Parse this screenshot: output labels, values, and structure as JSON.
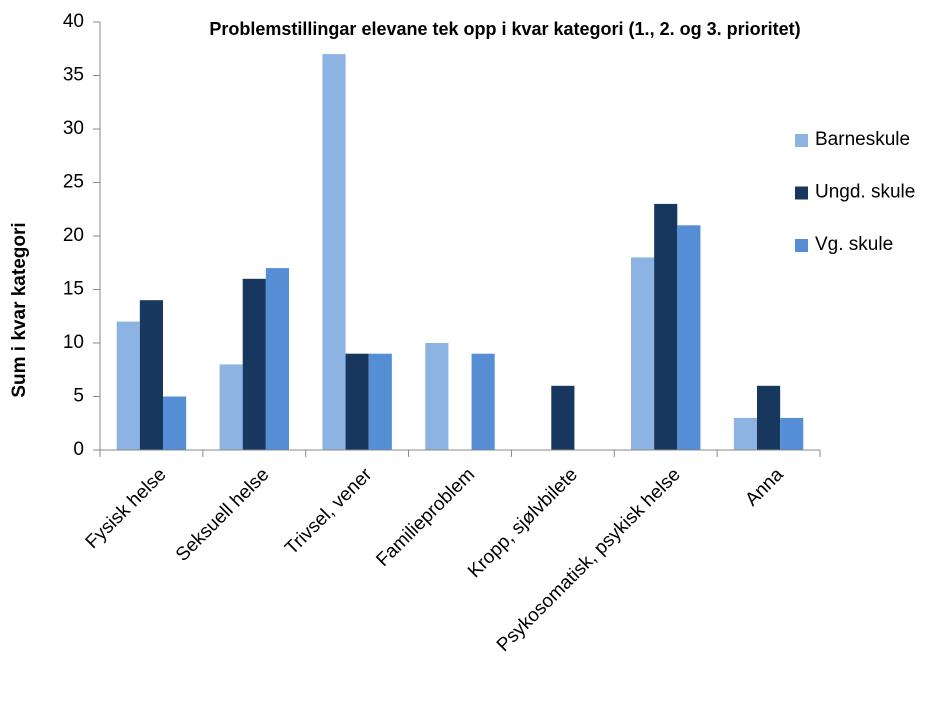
{
  "chart_data": {
    "type": "bar",
    "title": "Problemstillingar elevane tek opp i kvar kategori (1., 2. og 3. prioritet)",
    "y_label": "Sum i kvar kategori",
    "categories": [
      "Fysisk helse",
      "Seksuell helse",
      "Trivsel, vener",
      "Familieproblem",
      "Kropp, sjølvbilete",
      "Psykosomatisk, psykisk helse",
      "Anna"
    ],
    "series": [
      {
        "name": "Barneskule",
        "color": "#8db3e2",
        "values": [
          12,
          8,
          37,
          10,
          0,
          18,
          3
        ]
      },
      {
        "name": "Ungd. skule",
        "color": "#17375e",
        "values": [
          14,
          16,
          9,
          0,
          6,
          23,
          6
        ]
      },
      {
        "name": "Vg. skule",
        "color": "#558ed5",
        "values": [
          5,
          17,
          9,
          9,
          0,
          21,
          3
        ]
      }
    ],
    "ylim": [
      0,
      40
    ],
    "yticks": [
      0,
      5,
      10,
      15,
      20,
      25,
      30,
      35,
      40
    ],
    "grid": false,
    "legend": "right"
  }
}
